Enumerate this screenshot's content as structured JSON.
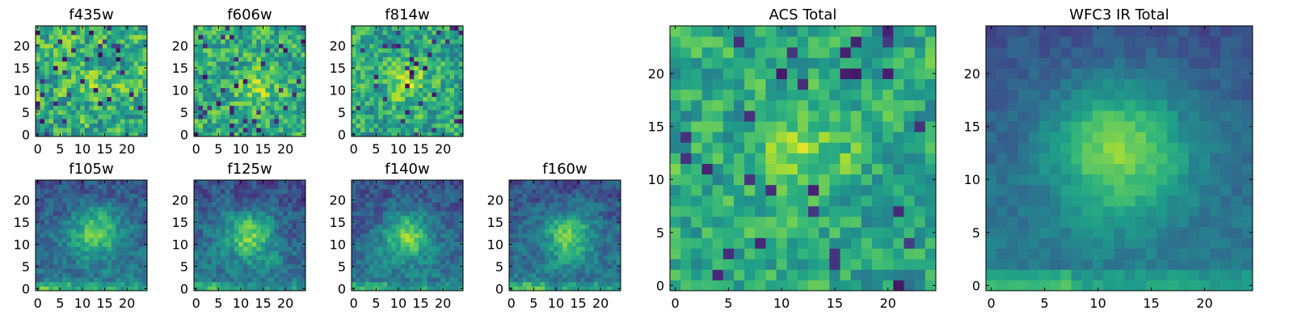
{
  "figure": {
    "description_type": "heatmap grid",
    "colormap": "viridis"
  },
  "chart_data": [
    {
      "type": "heatmap",
      "title": "f435w",
      "grid": [
        25,
        25
      ],
      "xticks": [
        0,
        5,
        10,
        15,
        20
      ],
      "yticks": [
        0,
        5,
        10,
        15,
        20
      ],
      "xlim": [
        -0.5,
        24.5
      ],
      "ylim": [
        -0.5,
        24.5
      ],
      "seed": 11,
      "blob": [
        13,
        11,
        2.5,
        0.15
      ],
      "mean": 0.62,
      "noise": 0.3,
      "floor": 0.0,
      "outliers": 0.06
    },
    {
      "type": "heatmap",
      "title": "f606w",
      "grid": [
        25,
        25
      ],
      "xticks": [
        0,
        5,
        10,
        15,
        20
      ],
      "yticks": [
        0,
        5,
        10,
        15,
        20
      ],
      "xlim": [
        -0.5,
        24.5
      ],
      "ylim": [
        -0.5,
        24.5
      ],
      "seed": 23,
      "blob": [
        13,
        11,
        2.8,
        0.25
      ],
      "mean": 0.62,
      "noise": 0.28,
      "floor": 0.0,
      "outliers": 0.05
    },
    {
      "type": "heatmap",
      "title": "f814w",
      "grid": [
        25,
        25
      ],
      "xticks": [
        0,
        5,
        10,
        15,
        20
      ],
      "yticks": [
        0,
        5,
        10,
        15,
        20
      ],
      "xlim": [
        -0.5,
        24.5
      ],
      "ylim": [
        -0.5,
        24.5
      ],
      "seed": 37,
      "blob": [
        12,
        12,
        2.8,
        0.3
      ],
      "mean": 0.6,
      "noise": 0.26,
      "floor": 0.0,
      "outliers": 0.05
    },
    {
      "type": "heatmap",
      "title": "f105w",
      "grid": [
        25,
        25
      ],
      "xticks": [
        0,
        5,
        10,
        15,
        20
      ],
      "yticks": [
        0,
        5,
        10,
        15,
        20
      ],
      "xlim": [
        -0.5,
        24.5
      ],
      "ylim": [
        -0.5,
        24.5
      ],
      "seed": 41,
      "blob": [
        13,
        13,
        4.0,
        0.45
      ],
      "mean": 0.42,
      "noise": 0.16,
      "floor": 0.3,
      "outliers": 0.0
    },
    {
      "type": "heatmap",
      "title": "f125w",
      "grid": [
        25,
        25
      ],
      "xticks": [
        0,
        5,
        10,
        15,
        20
      ],
      "yticks": [
        0,
        5,
        10,
        15,
        20
      ],
      "xlim": [
        -0.5,
        24.5
      ],
      "ylim": [
        -0.5,
        24.5
      ],
      "seed": 53,
      "blob": [
        12,
        12,
        3.8,
        0.45
      ],
      "mean": 0.42,
      "noise": 0.17,
      "floor": 0.3,
      "outliers": 0.0
    },
    {
      "type": "heatmap",
      "title": "f140w",
      "grid": [
        25,
        25
      ],
      "xticks": [
        0,
        5,
        10,
        15,
        20
      ],
      "yticks": [
        0,
        5,
        10,
        15,
        20
      ],
      "xlim": [
        -0.5,
        24.5
      ],
      "ylim": [
        -0.5,
        24.5
      ],
      "seed": 67,
      "blob": [
        12,
        12,
        3.8,
        0.45
      ],
      "mean": 0.42,
      "noise": 0.16,
      "floor": 0.3,
      "outliers": 0.0
    },
    {
      "type": "heatmap",
      "title": "f160w",
      "grid": [
        25,
        25
      ],
      "xticks": [
        0,
        5,
        10,
        15,
        20
      ],
      "yticks": [
        0,
        5,
        10,
        15,
        20
      ],
      "xlim": [
        -0.5,
        24.5
      ],
      "ylim": [
        -0.5,
        24.5
      ],
      "seed": 71,
      "blob": [
        13,
        12,
        3.8,
        0.45
      ],
      "mean": 0.42,
      "noise": 0.16,
      "floor": 0.3,
      "outliers": 0.0
    },
    {
      "type": "heatmap",
      "title": "ACS Total",
      "grid": [
        25,
        25
      ],
      "xticks": [
        0,
        5,
        10,
        15,
        20
      ],
      "yticks": [
        0,
        5,
        10,
        15,
        20
      ],
      "xlim": [
        -0.5,
        24.5
      ],
      "ylim": [
        -0.5,
        24.5
      ],
      "seed": 83,
      "blob": [
        12,
        12,
        3.0,
        0.25
      ],
      "mean": 0.6,
      "noise": 0.22,
      "floor": 0.0,
      "outliers": 0.05
    },
    {
      "type": "heatmap",
      "title": "WFC3 IR Total",
      "grid": [
        25,
        25
      ],
      "xticks": [
        0,
        5,
        10,
        15,
        20
      ],
      "yticks": [
        0,
        5,
        10,
        15,
        20
      ],
      "xlim": [
        -0.5,
        24.5
      ],
      "ylim": [
        -0.5,
        24.5
      ],
      "seed": 97,
      "blob": [
        12,
        13,
        4.5,
        0.48
      ],
      "mean": 0.42,
      "noise": 0.08,
      "floor": 0.32,
      "outliers": 0.0
    }
  ]
}
